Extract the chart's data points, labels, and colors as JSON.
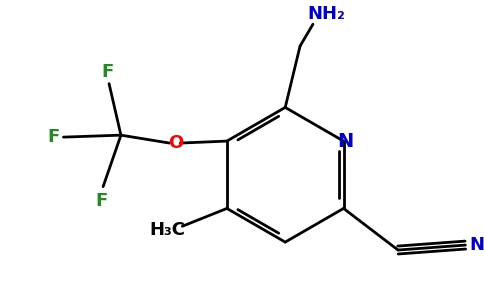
{
  "background_color": "#ffffff",
  "bond_color": "#000000",
  "N_color": "#0000cd",
  "O_color": "#ff0000",
  "F_color": "#228B22",
  "C_color": "#000000",
  "NH2_label": "NH₂",
  "N_label": "N",
  "O_label": "O",
  "CH3_label": "H₃C",
  "CN_label": "N",
  "fig_width": 4.84,
  "fig_height": 3.0,
  "dpi": 100
}
